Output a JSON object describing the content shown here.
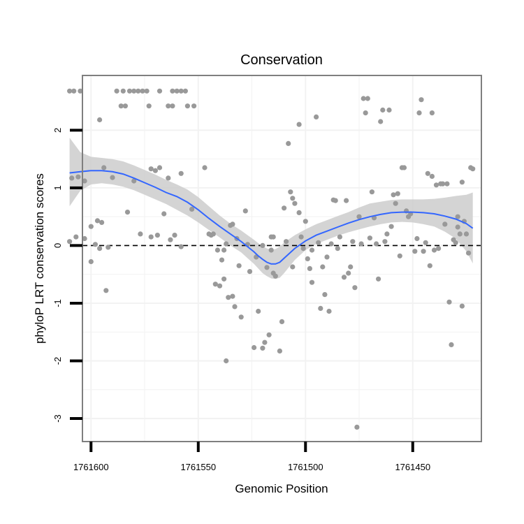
{
  "chart_data": {
    "type": "scatter",
    "title": "Conservation",
    "xlabel": "Genomic Position",
    "ylabel": "phyloP LRT conservation scores",
    "x_reversed": true,
    "xlim": [
      1761418,
      1761604
    ],
    "ylim": [
      -3.4,
      2.95
    ],
    "x_ticks": [
      1761600,
      1761550,
      1761500,
      1761450
    ],
    "x_tick_labels": [
      "1761600",
      "1761550",
      "1761500",
      "1761450"
    ],
    "y_ticks": [
      -3,
      -2,
      -1,
      0,
      1,
      2
    ],
    "y_tick_labels": [
      "-3",
      "-2",
      "-1",
      "0",
      "1",
      "2"
    ],
    "reference_line": {
      "y": 0,
      "style": "dashed",
      "color": "#000000"
    },
    "colors": {
      "points": "#999999",
      "smooth": "#3366ff",
      "ribbon": "#cccccc",
      "panel_border": "#7f7f7f",
      "grid": "#f2f2f2"
    },
    "points": [
      [
        1761610,
        2.68
      ],
      [
        1761608,
        2.68
      ],
      [
        1761605,
        2.68
      ],
      [
        1761588,
        2.68
      ],
      [
        1761585,
        2.68
      ],
      [
        1761582,
        2.68
      ],
      [
        1761580,
        2.68
      ],
      [
        1761578,
        2.68
      ],
      [
        1761576,
        2.68
      ],
      [
        1761574,
        2.68
      ],
      [
        1761568,
        2.68
      ],
      [
        1761562,
        2.68
      ],
      [
        1761560,
        2.68
      ],
      [
        1761558,
        2.68
      ],
      [
        1761556,
        2.68
      ],
      [
        1761586,
        2.42
      ],
      [
        1761584,
        2.42
      ],
      [
        1761573,
        2.42
      ],
      [
        1761564,
        2.42
      ],
      [
        1761562,
        2.42
      ],
      [
        1761555,
        2.42
      ],
      [
        1761552,
        2.42
      ],
      [
        1761596,
        2.18
      ],
      [
        1761609,
        1.17
      ],
      [
        1761606,
        1.19
      ],
      [
        1761603,
        1.12
      ],
      [
        1761594,
        1.35
      ],
      [
        1761590,
        1.18
      ],
      [
        1761580,
        1.12
      ],
      [
        1761572,
        1.33
      ],
      [
        1761570,
        1.3
      ],
      [
        1761568,
        1.35
      ],
      [
        1761564,
        1.17
      ],
      [
        1761558,
        1.25
      ],
      [
        1761547,
        1.35
      ],
      [
        1761597,
        0.43
      ],
      [
        1761595,
        0.4
      ],
      [
        1761583,
        0.58
      ],
      [
        1761577,
        0.2
      ],
      [
        1761566,
        0.55
      ],
      [
        1761561,
        0.18
      ],
      [
        1761553,
        0.63
      ],
      [
        1761600,
        0.33
      ],
      [
        1761610,
        0.07
      ],
      [
        1761607,
        0.15
      ],
      [
        1761603,
        0.12
      ],
      [
        1761598,
        0.02
      ],
      [
        1761596,
        -0.05
      ],
      [
        1761592,
        -0.03
      ],
      [
        1761572,
        0.15
      ],
      [
        1761569,
        0.18
      ],
      [
        1761563,
        0.1
      ],
      [
        1761558,
        -0.02
      ],
      [
        1761600,
        -0.28
      ],
      [
        1761593,
        -0.78
      ],
      [
        1761545,
        0.2
      ],
      [
        1761544,
        0.18
      ],
      [
        1761543,
        0.2
      ],
      [
        1761541,
        -0.08
      ],
      [
        1761539,
        -0.25
      ],
      [
        1761538,
        -0.08
      ],
      [
        1761537,
        0.03
      ],
      [
        1761535,
        0.35
      ],
      [
        1761534,
        0.37
      ],
      [
        1761532,
        0.12
      ],
      [
        1761531,
        -0.35
      ],
      [
        1761528,
        0.6
      ],
      [
        1761527,
        0.02
      ],
      [
        1761542,
        -0.67
      ],
      [
        1761540,
        -0.7
      ],
      [
        1761538,
        -0.58
      ],
      [
        1761536,
        -0.9
      ],
      [
        1761534,
        -0.88
      ],
      [
        1761533,
        -1.06
      ],
      [
        1761530,
        -1.24
      ],
      [
        1761526,
        -0.45
      ],
      [
        1761523,
        -0.2
      ],
      [
        1761524,
        -1.77
      ],
      [
        1761522,
        -1.14
      ],
      [
        1761520,
        -1.78
      ],
      [
        1761519,
        -1.68
      ],
      [
        1761517,
        -1.55
      ],
      [
        1761515,
        -0.48
      ],
      [
        1761514,
        -0.53
      ],
      [
        1761512,
        -1.83
      ],
      [
        1761511,
        -1.32
      ],
      [
        1761510,
        0.65
      ],
      [
        1761509,
        0.07
      ],
      [
        1761505,
        0.73
      ],
      [
        1761506,
        0.82
      ],
      [
        1761507,
        0.93
      ],
      [
        1761506,
        -0.37
      ],
      [
        1761503,
        0.57
      ],
      [
        1761502,
        0.15
      ],
      [
        1761501,
        -0.05
      ],
      [
        1761499,
        -0.23
      ],
      [
        1761497,
        -0.08
      ],
      [
        1761498,
        -0.4
      ],
      [
        1761503,
        2.1
      ],
      [
        1761508,
        1.77
      ],
      [
        1761537,
        -2.0
      ],
      [
        1761520,
        0.0
      ],
      [
        1761518,
        -0.38
      ],
      [
        1761516,
        -0.08
      ],
      [
        1761515,
        0.15
      ],
      [
        1761516,
        0.15
      ],
      [
        1761500,
        0.42
      ],
      [
        1761497,
        -0.64
      ],
      [
        1761495,
        2.23
      ],
      [
        1761494,
        0.05
      ],
      [
        1761493,
        -1.09
      ],
      [
        1761492,
        -0.37
      ],
      [
        1761491,
        -0.85
      ],
      [
        1761490,
        -0.2
      ],
      [
        1761489,
        -1.14
      ],
      [
        1761488,
        0.03
      ],
      [
        1761487,
        0.79
      ],
      [
        1761486,
        0.78
      ],
      [
        1761485,
        -0.05
      ],
      [
        1761484,
        0.15
      ],
      [
        1761482,
        -0.55
      ],
      [
        1761481,
        0.78
      ],
      [
        1761480,
        -0.48
      ],
      [
        1761479,
        -0.37
      ],
      [
        1761478,
        0.07
      ],
      [
        1761477,
        -0.73
      ],
      [
        1761476,
        -3.15
      ],
      [
        1761475,
        0.5
      ],
      [
        1761474,
        0.03
      ],
      [
        1761473,
        2.55
      ],
      [
        1761472,
        2.3
      ],
      [
        1761471,
        2.55
      ],
      [
        1761470,
        0.13
      ],
      [
        1761469,
        0.93
      ],
      [
        1761468,
        0.48
      ],
      [
        1761466,
        -0.58
      ],
      [
        1761467,
        0.03
      ],
      [
        1761465,
        2.15
      ],
      [
        1761464,
        2.35
      ],
      [
        1761463,
        0.07
      ],
      [
        1761462,
        0.2
      ],
      [
        1761461,
        2.35
      ],
      [
        1761460,
        0.33
      ],
      [
        1761459,
        0.88
      ],
      [
        1761458,
        0.73
      ],
      [
        1761457,
        0.9
      ],
      [
        1761456,
        -0.18
      ],
      [
        1761455,
        1.35
      ],
      [
        1761454,
        1.35
      ],
      [
        1761453,
        0.6
      ],
      [
        1761452,
        0.5
      ],
      [
        1761451,
        0.55
      ],
      [
        1761449,
        -0.1
      ],
      [
        1761448,
        0.12
      ],
      [
        1761447,
        2.3
      ],
      [
        1761446,
        2.53
      ],
      [
        1761445,
        -0.1
      ],
      [
        1761444,
        0.05
      ],
      [
        1761443,
        1.25
      ],
      [
        1761442,
        -0.35
      ],
      [
        1761441,
        1.2
      ],
      [
        1761441,
        2.3
      ],
      [
        1761440,
        -0.08
      ],
      [
        1761439,
        1.05
      ],
      [
        1761438,
        -0.05
      ],
      [
        1761437,
        1.07
      ],
      [
        1761436,
        1.07
      ],
      [
        1761435,
        0.37
      ],
      [
        1761434,
        1.07
      ],
      [
        1761433,
        -0.98
      ],
      [
        1761432,
        -1.72
      ],
      [
        1761431,
        0.1
      ],
      [
        1761430,
        0.05
      ],
      [
        1761429,
        0.32
      ],
      [
        1761428,
        0.2
      ],
      [
        1761427,
        -1.05
      ],
      [
        1761426,
        0.42
      ],
      [
        1761425,
        0.2
      ],
      [
        1761424,
        -0.13
      ],
      [
        1761423,
        1.35
      ],
      [
        1761422,
        1.33
      ],
      [
        1761427,
        1.1
      ],
      [
        1761429,
        0.5
      ]
    ],
    "smooth": {
      "x": [
        1761610,
        1761605,
        1761600,
        1761595,
        1761590,
        1761585,
        1761580,
        1761575,
        1761570,
        1761565,
        1761560,
        1761555,
        1761550,
        1761545,
        1761540,
        1761535,
        1761530,
        1761527,
        1761524,
        1761522,
        1761520,
        1761518,
        1761516,
        1761514,
        1761512,
        1761510,
        1761505,
        1761500,
        1761495,
        1761490,
        1761485,
        1761480,
        1761475,
        1761470,
        1761465,
        1761460,
        1761455,
        1761450,
        1761445,
        1761440,
        1761435,
        1761430,
        1761425,
        1761422
      ],
      "y": [
        1.26,
        1.28,
        1.3,
        1.3,
        1.28,
        1.24,
        1.17,
        1.09,
        1.01,
        0.92,
        0.85,
        0.75,
        0.62,
        0.47,
        0.33,
        0.2,
        0.07,
        -0.02,
        -0.11,
        -0.18,
        -0.24,
        -0.29,
        -0.32,
        -0.32,
        -0.29,
        -0.22,
        -0.05,
        0.08,
        0.18,
        0.25,
        0.32,
        0.39,
        0.45,
        0.5,
        0.54,
        0.57,
        0.58,
        0.58,
        0.57,
        0.55,
        0.51,
        0.46,
        0.38,
        0.3
      ],
      "lower": [
        0.68,
        0.95,
        1.06,
        1.08,
        1.06,
        1.02,
        0.96,
        0.88,
        0.8,
        0.72,
        0.62,
        0.52,
        0.4,
        0.27,
        0.14,
        0.0,
        -0.12,
        -0.22,
        -0.32,
        -0.4,
        -0.48,
        -0.53,
        -0.57,
        -0.58,
        -0.56,
        -0.48,
        -0.25,
        -0.08,
        0.03,
        0.1,
        0.17,
        0.23,
        0.28,
        0.33,
        0.37,
        0.4,
        0.41,
        0.4,
        0.37,
        0.33,
        0.24,
        0.12,
        -0.1,
        -0.31
      ],
      "upper": [
        1.87,
        1.62,
        1.54,
        1.52,
        1.5,
        1.46,
        1.39,
        1.31,
        1.23,
        1.14,
        1.06,
        0.97,
        0.84,
        0.68,
        0.52,
        0.38,
        0.26,
        0.18,
        0.1,
        0.04,
        -0.01,
        -0.05,
        -0.07,
        -0.06,
        -0.02,
        0.05,
        0.18,
        0.28,
        0.37,
        0.44,
        0.51,
        0.58,
        0.66,
        0.73,
        0.76,
        0.79,
        0.8,
        0.8,
        0.8,
        0.81,
        0.83,
        0.86,
        0.88,
        0.92
      ]
    }
  }
}
